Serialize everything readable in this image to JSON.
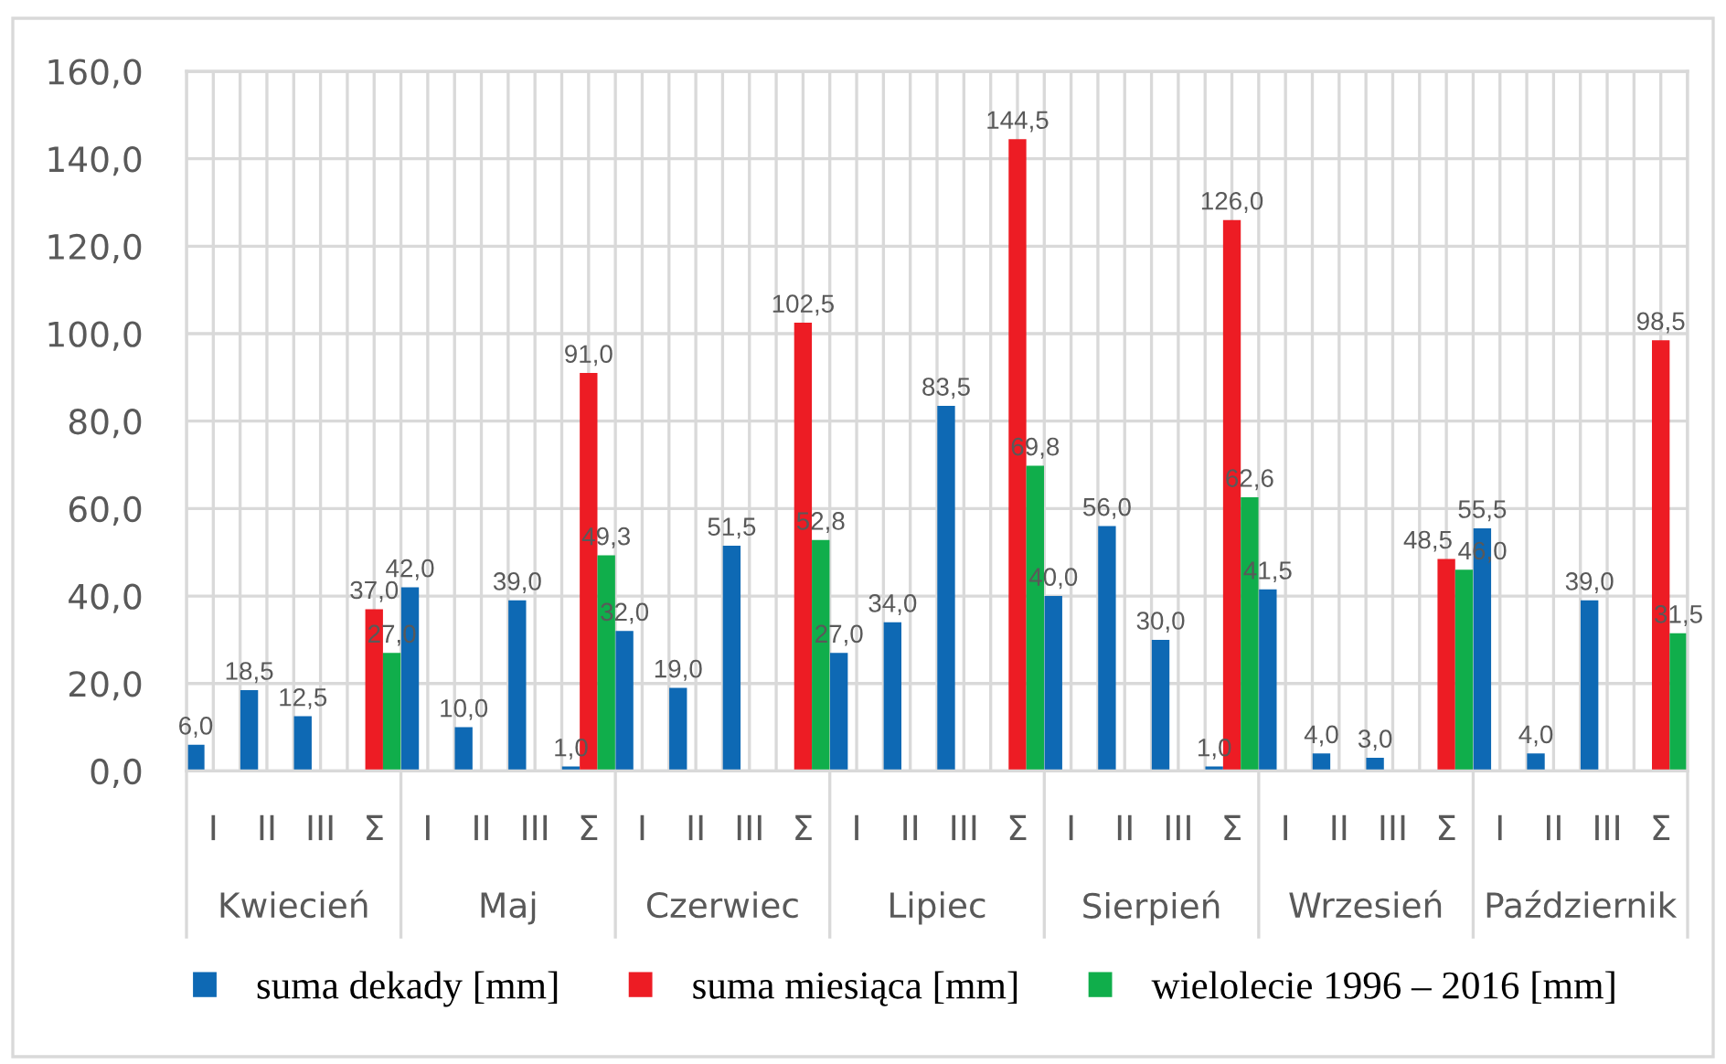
{
  "chart_data": {
    "type": "bar",
    "categories": [
      "I",
      "II",
      "III",
      "Σ",
      "I",
      "II",
      "III",
      "Σ",
      "I",
      "II",
      "III",
      "Σ",
      "I",
      "II",
      "III",
      "Σ",
      "I",
      "II",
      "III",
      "Σ",
      "I",
      "II",
      "III",
      "Σ",
      "I",
      "II",
      "III",
      "Σ"
    ],
    "annotations": [
      "Kwiecień",
      "Maj",
      "Czerwiec",
      "Lipiec",
      "Sierpień",
      "Wrzesień",
      "Październik"
    ],
    "series": [
      {
        "name": "suma dekady [mm]",
        "color": "#0e69b4",
        "values": [
          6.0,
          18.5,
          12.5,
          null,
          42.0,
          10.0,
          39.0,
          1.0,
          32.0,
          19.0,
          51.5,
          null,
          27.0,
          34.0,
          83.5,
          null,
          40.0,
          56.0,
          30.0,
          1.0,
          41.5,
          4.0,
          3.0,
          null,
          55.5,
          4.0,
          39.0,
          null
        ],
        "value_labels": [
          "6,0",
          "18,5",
          "12,5",
          null,
          "42,0",
          "10,0",
          "39,0",
          "1,0",
          "32,0",
          "19,0",
          "51,5",
          null,
          "27,0",
          "34,0",
          "83,5",
          null,
          "40,0",
          "56,0",
          "30,0",
          "1,0",
          "41,5",
          "4,0",
          "3,0",
          null,
          "55,5",
          "4,0",
          "39,0",
          null
        ]
      },
      {
        "name": "suma miesiąca [mm]",
        "color": "#ed1c24",
        "values": [
          null,
          null,
          null,
          37.0,
          null,
          null,
          null,
          91.0,
          null,
          null,
          null,
          102.5,
          null,
          null,
          null,
          144.5,
          null,
          null,
          null,
          126.0,
          null,
          null,
          null,
          48.5,
          null,
          null,
          null,
          98.5
        ],
        "value_labels": [
          null,
          null,
          null,
          "37,0",
          null,
          null,
          null,
          "91,0",
          null,
          null,
          null,
          "102,5",
          null,
          null,
          null,
          "144,5",
          null,
          null,
          null,
          "126,0",
          null,
          null,
          null,
          "48,5",
          null,
          null,
          null,
          "98,5"
        ]
      },
      {
        "name": "wielolecie 1996 – 2016 [mm]",
        "color": "#10ae4b",
        "values": [
          null,
          null,
          null,
          27.0,
          null,
          null,
          null,
          49.3,
          null,
          null,
          null,
          52.8,
          null,
          null,
          null,
          69.8,
          null,
          null,
          null,
          62.6,
          null,
          null,
          null,
          46.0,
          null,
          null,
          null,
          31.5
        ],
        "value_labels": [
          null,
          null,
          null,
          "27,0",
          null,
          null,
          null,
          "49,3",
          null,
          null,
          null,
          "52,8",
          null,
          null,
          null,
          "69,8",
          null,
          null,
          null,
          "62,6",
          null,
          null,
          null,
          "46,0",
          null,
          null,
          null,
          "31,5"
        ]
      }
    ],
    "ylim": [
      0,
      160
    ],
    "yticks": [
      {
        "value": 0,
        "label": "0,0"
      },
      {
        "value": 20,
        "label": "20,0"
      },
      {
        "value": 40,
        "label": "40,0"
      },
      {
        "value": 60,
        "label": "60,0"
      },
      {
        "value": 80,
        "label": "80,0"
      },
      {
        "value": 100,
        "label": "100,0"
      },
      {
        "value": 120,
        "label": "120,0"
      },
      {
        "value": 140,
        "label": "140,0"
      },
      {
        "value": 160,
        "label": "160,0"
      }
    ],
    "grid": true,
    "legend": "bottom"
  }
}
